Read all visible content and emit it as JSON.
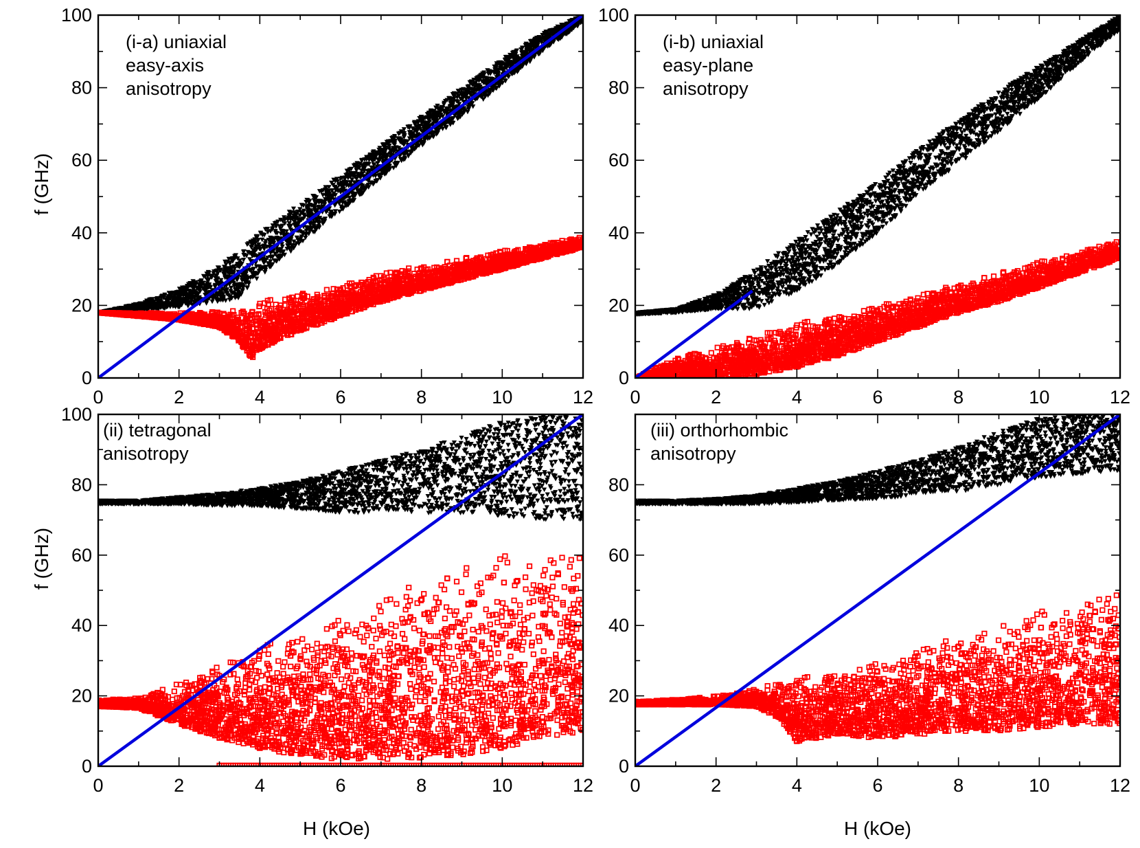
{
  "figure": {
    "ylabel": "f (GHz)",
    "xlabel": "H (kOe)"
  },
  "colors": {
    "upper_branch": "#000000",
    "lower_branch": "#ff0000",
    "line": "#0000dd"
  },
  "chart_data": [
    {
      "type": "scatter",
      "annotation": [
        "(i-a) uniaxial",
        "easy-axis",
        "anisotropy"
      ],
      "xlim": [
        0,
        12
      ],
      "ylim": [
        0,
        100
      ],
      "xticks": [
        0,
        2,
        4,
        6,
        8,
        10,
        12
      ],
      "yticks": [
        0,
        20,
        40,
        60,
        80,
        100
      ],
      "xlabel": "",
      "ylabel": "f (GHz)",
      "series": [
        {
          "marker": "filled-triangle",
          "color": "#000000",
          "x": [
            0,
            1,
            2,
            3,
            3.5,
            4,
            5,
            6,
            7,
            8,
            9,
            10,
            11,
            12
          ],
          "y_lower": [
            18,
            18.5,
            19.5,
            21,
            22,
            28,
            37,
            46,
            55,
            64,
            72,
            81,
            90,
            98
          ],
          "y_upper": [
            18,
            20.5,
            24.5,
            31,
            35,
            40,
            48,
            56,
            64,
            72,
            80,
            88,
            95,
            100
          ]
        },
        {
          "marker": "open-square",
          "color": "#ff0000",
          "x": [
            0,
            1,
            2,
            3,
            3.5,
            3.8,
            4,
            5,
            6,
            7,
            8,
            9,
            10,
            11,
            12
          ],
          "y_lower": [
            18,
            17,
            16,
            14,
            10,
            5,
            8,
            13,
            17,
            21,
            24,
            27,
            30,
            33,
            36
          ],
          "y_upper": [
            18,
            18,
            18,
            18.5,
            19,
            20,
            21,
            24,
            26,
            29,
            31,
            33,
            35,
            37,
            39
          ]
        },
        {
          "type": "line",
          "color": "#0000dd",
          "x": [
            0,
            12
          ],
          "y": [
            0,
            100
          ]
        }
      ]
    },
    {
      "type": "scatter",
      "annotation": [
        "(i-b) uniaxial",
        "easy-plane",
        "anisotropy"
      ],
      "xlim": [
        0,
        12
      ],
      "ylim": [
        0,
        100
      ],
      "xticks": [
        0,
        2,
        4,
        6,
        8,
        10,
        12
      ],
      "yticks": [
        0,
        20,
        40,
        60,
        80,
        100
      ],
      "xlabel": "",
      "ylabel": "",
      "series": [
        {
          "marker": "filled-triangle",
          "color": "#000000",
          "x": [
            0,
            1,
            2,
            3,
            4,
            5,
            6,
            7,
            8,
            9,
            10,
            11,
            12
          ],
          "y_lower": [
            17.5,
            18,
            19,
            19,
            24,
            31,
            40,
            50,
            59,
            68,
            77,
            87,
            96
          ],
          "y_upper": [
            18,
            19,
            23,
            30,
            38,
            46,
            54,
            63,
            71,
            79,
            86,
            93,
            100
          ]
        },
        {
          "marker": "open-square",
          "color": "#ff0000",
          "x": [
            0,
            1,
            2,
            3,
            4,
            5,
            6,
            7,
            8,
            9,
            10,
            11,
            12
          ],
          "y_lower": [
            0,
            0,
            0,
            1,
            3,
            6,
            10,
            14,
            18,
            21,
            25,
            29,
            33
          ],
          "y_upper": [
            0,
            6,
            9,
            12,
            15,
            18,
            20.5,
            23,
            26,
            29,
            32,
            35,
            38
          ]
        },
        {
          "type": "line",
          "color": "#0000dd",
          "x": [
            0,
            2.9
          ],
          "y": [
            0,
            24
          ]
        }
      ]
    },
    {
      "type": "scatter",
      "annotation": [
        "(ii) tetragonal",
        "anisotropy"
      ],
      "xlim": [
        0,
        12
      ],
      "ylim": [
        0,
        100
      ],
      "xticks": [
        0,
        2,
        4,
        6,
        8,
        10,
        12
      ],
      "yticks": [
        0,
        20,
        40,
        60,
        80,
        100
      ],
      "xlabel": "H (kOe)",
      "ylabel": "f (GHz)",
      "series": [
        {
          "marker": "filled-triangle",
          "color": "#000000",
          "x": [
            0,
            1,
            2,
            3,
            4,
            5,
            6,
            7,
            8,
            9,
            10,
            11,
            12
          ],
          "y_lower": [
            74.5,
            74.5,
            74.5,
            74,
            74,
            73,
            72,
            72,
            72,
            72,
            71,
            70,
            70
          ],
          "y_upper": [
            75.5,
            75.5,
            76.5,
            77.5,
            79,
            81,
            84,
            87,
            90,
            94,
            98,
            100,
            100
          ]
        },
        {
          "marker": "open-square",
          "color": "#ff0000",
          "x": [
            0,
            1,
            2,
            3,
            4,
            5,
            6,
            7,
            8,
            9,
            10,
            11,
            12
          ],
          "y_lower": [
            17,
            16.5,
            12,
            8,
            5,
            3,
            2,
            2,
            2,
            3,
            5,
            8,
            10
          ],
          "y_upper": [
            19,
            19.5,
            24,
            29,
            34,
            40,
            45,
            49,
            53,
            57,
            60,
            61,
            62
          ]
        },
        {
          "marker": "open-square",
          "color": "#ff0000",
          "x": [
            3,
            12
          ],
          "y": [
            0.2,
            0.2
          ]
        },
        {
          "type": "line",
          "color": "#0000dd",
          "x": [
            0,
            12
          ],
          "y": [
            0,
            100
          ]
        }
      ]
    },
    {
      "type": "scatter",
      "annotation": [
        "(iii) orthorhombic",
        "anisotropy"
      ],
      "xlim": [
        0,
        12
      ],
      "ylim": [
        0,
        100
      ],
      "xticks": [
        0,
        2,
        4,
        6,
        8,
        10,
        12
      ],
      "yticks": [
        0,
        20,
        40,
        60,
        80
      ],
      "xlabel": "H (kOe)",
      "ylabel": "",
      "series": [
        {
          "marker": "filled-triangle",
          "color": "#000000",
          "x": [
            0,
            1,
            2,
            3,
            4,
            5,
            6,
            7,
            8,
            9,
            10,
            11,
            12
          ],
          "y_lower": [
            74.5,
            74.5,
            74.5,
            74.5,
            75,
            75.5,
            76,
            77,
            78,
            80,
            82,
            83,
            84
          ],
          "y_upper": [
            75.5,
            75.5,
            76,
            77,
            79,
            81,
            84,
            87,
            91,
            95,
            99,
            100,
            100
          ]
        },
        {
          "marker": "open-square",
          "color": "#ff0000",
          "x": [
            0,
            1,
            2,
            3,
            3.5,
            4,
            5,
            6,
            7,
            8,
            9,
            10,
            11,
            12
          ],
          "y_lower": [
            17.5,
            17.5,
            17.5,
            17,
            14,
            7,
            9,
            8,
            9,
            10,
            10,
            11,
            12,
            12
          ],
          "y_upper": [
            18.5,
            19,
            20,
            22,
            24,
            25,
            28,
            31,
            34,
            37,
            40,
            44,
            47,
            51
          ]
        },
        {
          "type": "line",
          "color": "#0000dd",
          "x": [
            0,
            12
          ],
          "y": [
            0,
            100
          ]
        }
      ]
    }
  ]
}
